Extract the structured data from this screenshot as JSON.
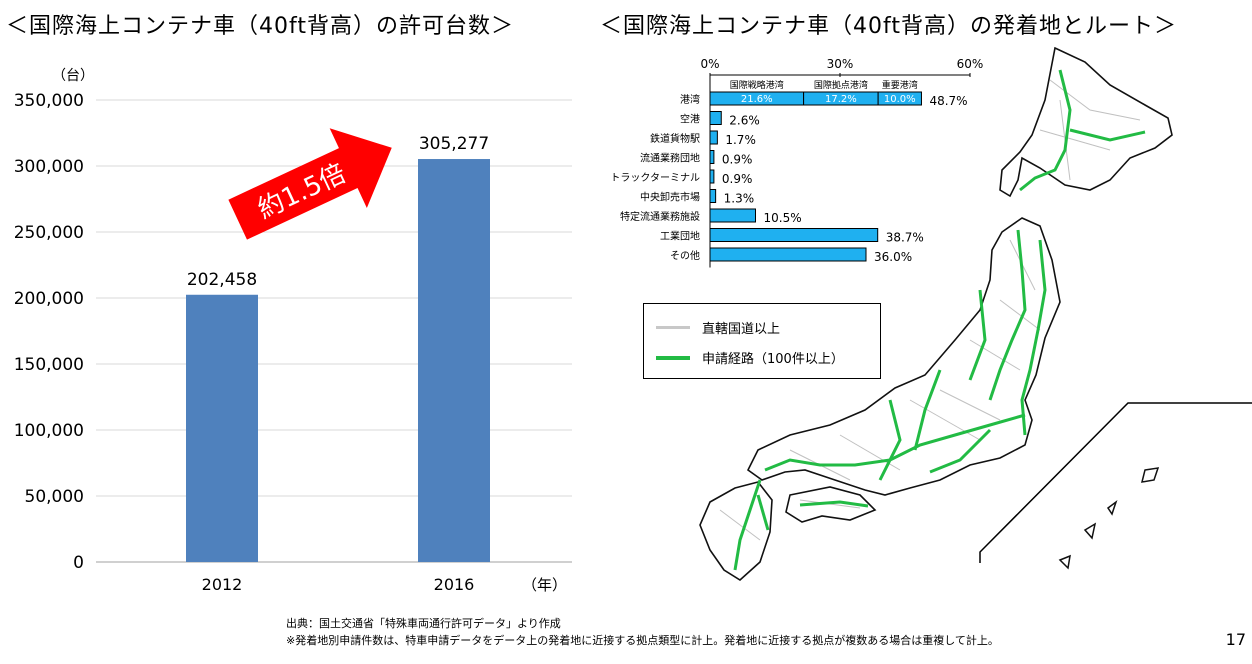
{
  "slide": {
    "left_title": "＜国際海上コンテナ車（40ft背高）の許可台数＞",
    "right_title": "＜国際海上コンテナ車（40ft背高）の発着地とルート＞",
    "source_note": "出典：国土交通省「特殊車両通行許可データ」より作成",
    "method_note": "※発着地別申請件数は、特車申請データをデータ上の発着地に近接する拠点類型に計上。発着地に近接する拠点が複数ある場合は重複して計上。",
    "page_number": "17"
  },
  "chart_data": [
    {
      "type": "bar",
      "categories": [
        "2012",
        "2016"
      ],
      "values": [
        202458,
        305277
      ],
      "data_labels": [
        "202,458",
        "305,277"
      ],
      "ylabel": "（台）",
      "xlabel": "（年）",
      "ylim": [
        0,
        350000
      ],
      "yticks": [
        0,
        50000,
        100000,
        150000,
        200000,
        250000,
        300000,
        350000
      ],
      "ytick_labels": [
        "0",
        "50,000",
        "100,000",
        "150,000",
        "200,000",
        "250,000",
        "300,000",
        "350,000"
      ],
      "grid": true,
      "bar_color": "#4f81bd",
      "annotation": "約1.5倍",
      "annotation_color": "#ff0000"
    },
    {
      "type": "bar",
      "orientation": "horizontal",
      "xlim": [
        0,
        60
      ],
      "xticks": [
        0,
        30,
        60
      ],
      "xtick_labels": [
        "0%",
        "30%",
        "60%"
      ],
      "categories": [
        "港湾",
        "空港",
        "鉄道貨物駅",
        "流通業務団地",
        "トラックターミナル",
        "中央卸売市場",
        "特定流通業務施設",
        "工業団地",
        "その他"
      ],
      "values": [
        48.7,
        2.6,
        1.7,
        0.9,
        0.9,
        1.3,
        10.5,
        38.7,
        36.0
      ],
      "data_labels": [
        "48.7%",
        "2.6%",
        "1.7%",
        "0.9%",
        "0.9%",
        "1.3%",
        "10.5%",
        "38.7%",
        "36.0%"
      ],
      "stacked_first": {
        "segment_names": [
          "国際戦略港湾",
          "国際拠点港湾",
          "重要港湾"
        ],
        "values": [
          21.6,
          17.2,
          10.0
        ],
        "labels": [
          "21.6%",
          "17.2%",
          "10.0%"
        ]
      },
      "bar_color": "#1fb0f0",
      "bar_edge": "#000000"
    }
  ],
  "map": {
    "legend": [
      {
        "label": "直轄国道以上",
        "color": "#c8c8c8"
      },
      {
        "label": "申請経路（100件以上）",
        "color": "#22bb44"
      }
    ]
  }
}
